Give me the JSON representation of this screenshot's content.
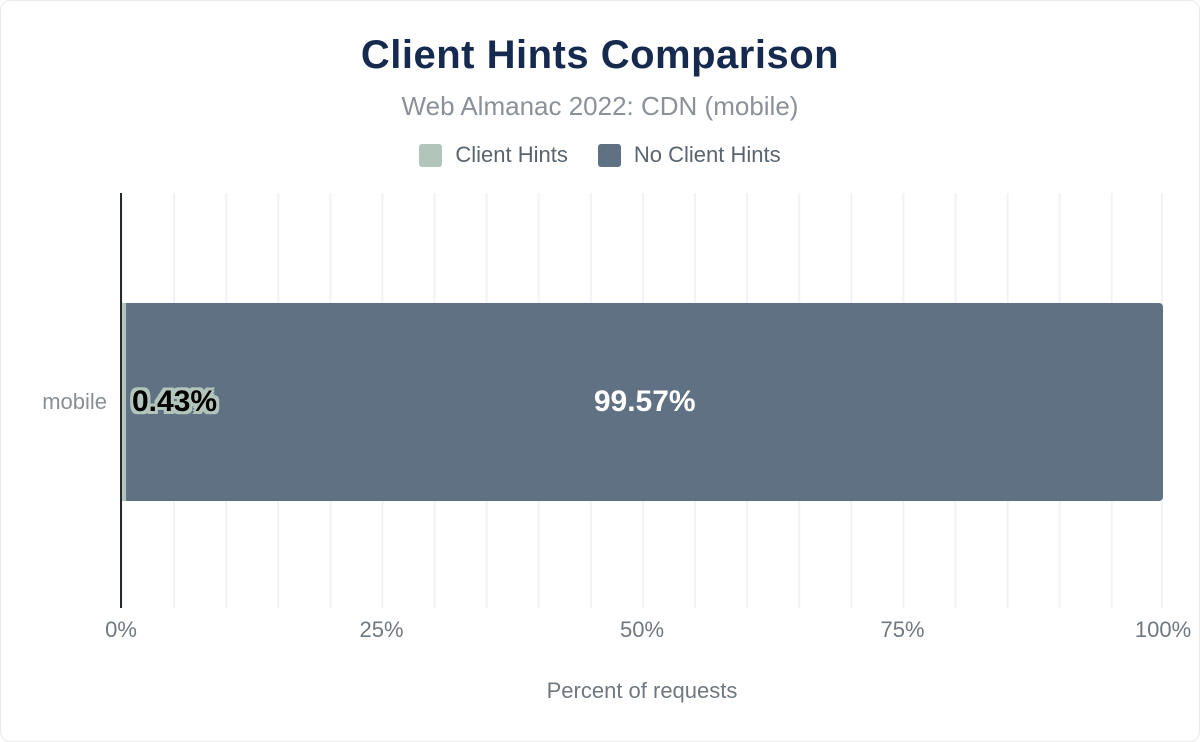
{
  "header": {
    "title": "Client Hints Comparison",
    "subtitle": "Web Almanac 2022: CDN (mobile)"
  },
  "chart_data": {
    "type": "bar",
    "orientation": "horizontal",
    "stacked": true,
    "title": "Client Hints Comparison",
    "subtitle": "Web Almanac 2022: CDN (mobile)",
    "categories": [
      "mobile"
    ],
    "series": [
      {
        "name": "Client Hints",
        "values": [
          0.43
        ],
        "label": "0.43%",
        "color": "#b2c5ba"
      },
      {
        "name": "No Client Hints",
        "values": [
          99.57
        ],
        "label": "99.57%",
        "color": "#5f7183"
      }
    ],
    "xlabel": "Percent of requests",
    "ylabel": "",
    "xlim": [
      0,
      100
    ],
    "xticks": [
      {
        "value": 0,
        "label": "0%"
      },
      {
        "value": 25,
        "label": "25%"
      },
      {
        "value": 50,
        "label": "50%"
      },
      {
        "value": 75,
        "label": "75%"
      },
      {
        "value": 100,
        "label": "100%"
      }
    ],
    "grid": "vertical gridlines every 5%",
    "legend_position": "top"
  },
  "colors": {
    "title": "#152a4e",
    "subtitle": "#8a9199",
    "legend_text": "#5a646d",
    "tick_text": "#70787f",
    "category_text": "#8a8f94",
    "grid_line": "#f2f3f4",
    "axis_line": "#24292e",
    "value_on_light_bar": "#000000",
    "value_on_dark_bar": "#ffffff"
  }
}
